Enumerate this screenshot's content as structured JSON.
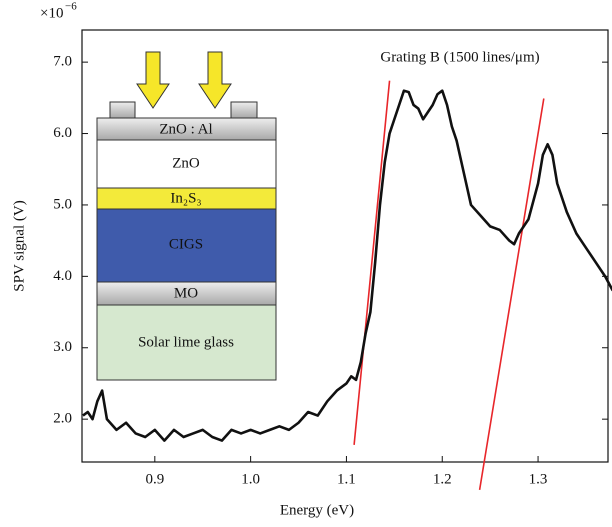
{
  "chart_data": {
    "type": "line",
    "xlabel": "Energy (eV)",
    "ylabel": "SPV signal (V)",
    "y_multiplier": {
      "base": "×10",
      "exponent": "−6"
    },
    "annotation": "Grating B (1500 lines/μm)",
    "xlim": [
      0.824,
      1.373
    ],
    "ylim": [
      1.4,
      7.45
    ],
    "xticks": [
      0.9,
      {
        "value": 1,
        "label": "1.0"
      },
      1.1,
      1.2,
      1.3
    ],
    "yticks": [
      {
        "value": 2,
        "label": "2.0"
      },
      {
        "value": 3,
        "label": "3.0"
      },
      {
        "value": 4,
        "label": "4.0"
      },
      {
        "value": 5,
        "label": "5.0"
      },
      {
        "value": 6,
        "label": "6.0"
      },
      {
        "value": 7,
        "label": "7.0"
      }
    ],
    "grid": false,
    "x": [
      0.825,
      0.83,
      0.835,
      0.84,
      0.845,
      0.85,
      0.86,
      0.87,
      0.88,
      0.89,
      0.9,
      0.91,
      0.92,
      0.93,
      0.94,
      0.95,
      0.96,
      0.97,
      0.98,
      0.99,
      1.0,
      1.01,
      1.02,
      1.03,
      1.04,
      1.05,
      1.06,
      1.07,
      1.08,
      1.09,
      1.1,
      1.105,
      1.11,
      1.115,
      1.12,
      1.125,
      1.13,
      1.135,
      1.14,
      1.145,
      1.15,
      1.155,
      1.16,
      1.165,
      1.17,
      1.175,
      1.18,
      1.185,
      1.19,
      1.195,
      1.2,
      1.205,
      1.21,
      1.215,
      1.22,
      1.225,
      1.23,
      1.24,
      1.25,
      1.26,
      1.27,
      1.275,
      1.28,
      1.29,
      1.3,
      1.305,
      1.31,
      1.315,
      1.32,
      1.33,
      1.34,
      1.35,
      1.36,
      1.37,
      1.378
    ],
    "series": [
      {
        "color": "#111111",
        "values": [
          2.05,
          2.1,
          2.0,
          2.25,
          2.4,
          2.0,
          1.85,
          1.95,
          1.8,
          1.75,
          1.85,
          1.7,
          1.85,
          1.75,
          1.8,
          1.85,
          1.75,
          1.7,
          1.85,
          1.8,
          1.85,
          1.8,
          1.85,
          1.9,
          1.85,
          1.95,
          2.1,
          2.05,
          2.25,
          2.4,
          2.5,
          2.6,
          2.55,
          2.8,
          3.2,
          3.5,
          4.2,
          5.0,
          5.6,
          6.0,
          6.2,
          6.4,
          6.6,
          6.58,
          6.4,
          6.35,
          6.2,
          6.3,
          6.4,
          6.55,
          6.6,
          6.4,
          6.1,
          5.9,
          5.6,
          5.3,
          5.0,
          4.85,
          4.7,
          4.65,
          4.5,
          4.45,
          4.6,
          4.8,
          5.3,
          5.7,
          5.85,
          5.7,
          5.3,
          4.9,
          4.6,
          4.4,
          4.2,
          4.0,
          3.8
        ]
      }
    ],
    "tangent_lines": [
      {
        "color": "#e8262a",
        "x": [
          1.108,
          1.145
        ],
        "y": [
          1.64,
          6.74
        ]
      },
      {
        "color": "#e8262a",
        "x": [
          1.239,
          1.306
        ],
        "y": [
          1.01,
          6.49
        ]
      }
    ]
  },
  "inset": {
    "layers": [
      "ZnO : Al",
      "ZnO",
      "In₂S₃",
      "CIGS",
      "MO",
      "Solar lime glass"
    ]
  }
}
